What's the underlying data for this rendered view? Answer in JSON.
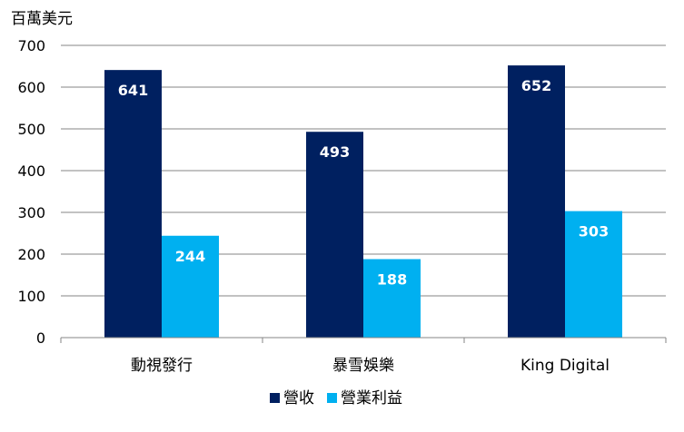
{
  "chart_data": {
    "type": "bar",
    "ylabel": "百萬美元",
    "categories": [
      "動視發行",
      "暴雪娛樂",
      "King Digital"
    ],
    "series": [
      {
        "name": "營收",
        "values": [
          641,
          493,
          652
        ],
        "color": "#002060"
      },
      {
        "name": "營業利益",
        "values": [
          244,
          188,
          303
        ],
        "color": "#00B0F0"
      }
    ],
    "ylim": [
      0,
      700
    ],
    "yticks": [
      0,
      100,
      200,
      300,
      400,
      500,
      600,
      700
    ],
    "grid": true,
    "legend_position": "bottom",
    "data_labels": true
  }
}
